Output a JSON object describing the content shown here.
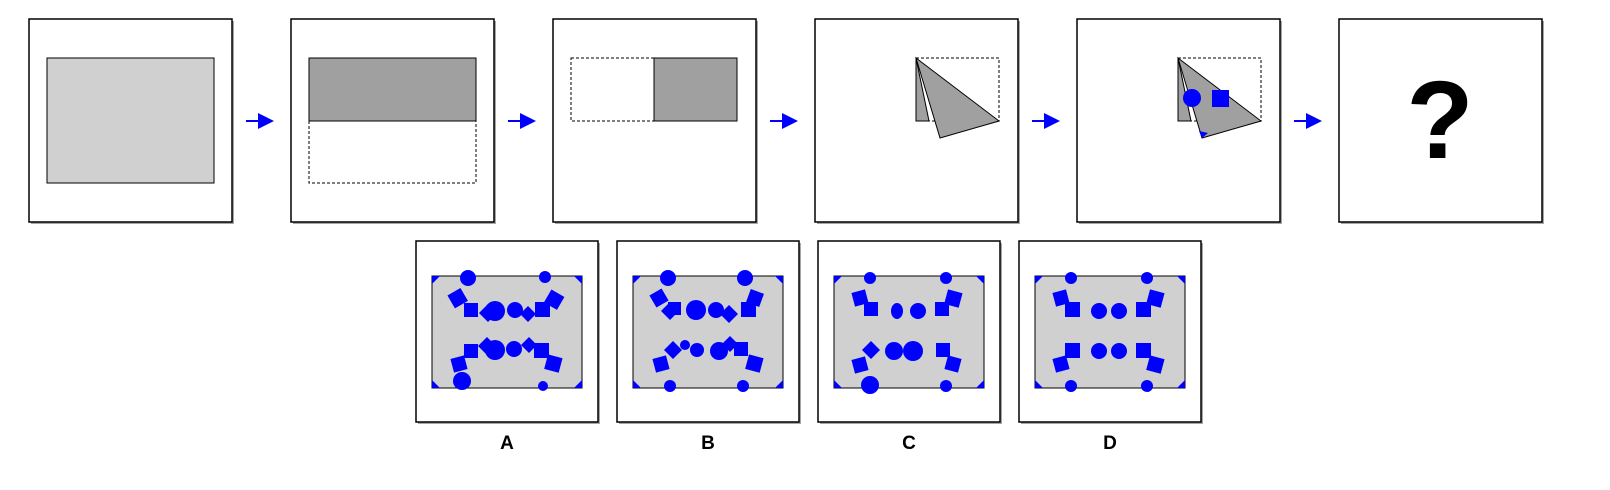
{
  "colors": {
    "paper": "#d0d0d0",
    "folded": "#a0a0a0",
    "hole": "#0000ff",
    "arrow": "#0000ff",
    "frame": "#000000"
  },
  "steps": [
    {
      "id": "step-1",
      "content": "unfolded-paper"
    },
    {
      "id": "step-2",
      "content": "fold-top-half-down"
    },
    {
      "id": "step-3",
      "content": "fold-left-half-right"
    },
    {
      "id": "step-4",
      "content": "fold-diagonal"
    },
    {
      "id": "step-5",
      "content": "punch-holes"
    },
    {
      "id": "step-6",
      "content": "question"
    }
  ],
  "question_mark": "?",
  "options": [
    {
      "label": "A"
    },
    {
      "label": "B"
    },
    {
      "label": "C"
    },
    {
      "label": "D"
    }
  ]
}
